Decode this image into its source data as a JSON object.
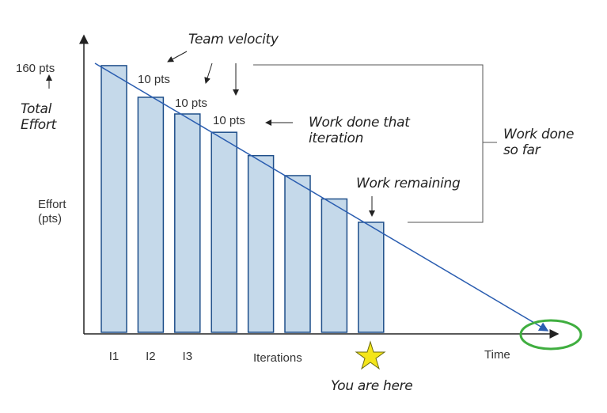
{
  "chart_data": {
    "type": "bar",
    "categories": [
      "I1",
      "I2",
      "I3",
      null,
      null,
      null,
      null,
      null
    ],
    "values": [
      160,
      141,
      131,
      120,
      106,
      94,
      80,
      66
    ],
    "color": "#c5d9ea",
    "ylim": [
      0,
      178
    ],
    "yticks": [
      {
        "value": 160,
        "label": "160 pts"
      }
    ],
    "y_label": "Effort (pts)",
    "x_label": "Iterations",
    "x_end_label": "Time",
    "annotations": [
      "Team velocity",
      "10 pts",
      "10 pts",
      "10 pts",
      "Total Effort",
      "Work done that iteration",
      "Work done so far",
      "Work remaining",
      "You are here"
    ]
  }
}
